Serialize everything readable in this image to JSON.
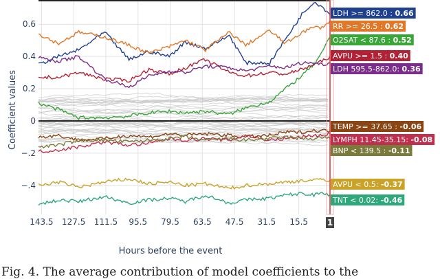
{
  "chart_data": {
    "type": "line",
    "xlabel": "Hours before the event",
    "ylabel": "Coefficient values",
    "x_ticks": [
      "143.5",
      "127.5",
      "111.5",
      "95.5",
      "79.5",
      "63.5",
      "47.5",
      "31.5",
      "15.5"
    ],
    "x_range": [
      145,
      0
    ],
    "y_ticks": [
      -0.4,
      -0.2,
      0,
      0.2,
      0.4,
      0.6
    ],
    "ylim": [
      -0.58,
      0.75
    ],
    "grid": true,
    "current_marker": "1",
    "series": [
      {
        "name": "LDH >= 862.0",
        "label": "LDH >= 862.0 : ",
        "final": "0.66",
        "color": "#1f3f8f",
        "x": [
          145,
          135,
          125,
          112,
          100,
          90,
          80,
          72,
          62,
          50,
          42,
          30,
          22,
          14,
          8,
          4,
          0
        ],
        "y": [
          0.35,
          0.4,
          0.44,
          0.55,
          0.38,
          0.43,
          0.4,
          0.49,
          0.45,
          0.53,
          0.36,
          0.36,
          0.51,
          0.66,
          0.74,
          0.71,
          0.66
        ]
      },
      {
        "name": "RR >= 26.5",
        "label": "RR >= 26.5 : ",
        "final": "0.62",
        "color": "#e0782a",
        "x": [
          145,
          135,
          125,
          112,
          100,
          90,
          80,
          72,
          62,
          50,
          42,
          30,
          22,
          14,
          8,
          4,
          0
        ],
        "y": [
          0.54,
          0.48,
          0.55,
          0.52,
          0.47,
          0.42,
          0.46,
          0.5,
          0.44,
          0.55,
          0.47,
          0.56,
          0.48,
          0.55,
          0.58,
          0.58,
          0.62
        ]
      },
      {
        "name": "O2SAT < 87.6",
        "label": "O2SAT < 87.6 : ",
        "final": "0.52",
        "color": "#3aa63a",
        "x": [
          145,
          135,
          125,
          112,
          100,
          90,
          80,
          72,
          62,
          50,
          42,
          30,
          22,
          14,
          8,
          4,
          0
        ],
        "y": [
          0.11,
          0.07,
          0.02,
          0.02,
          0.03,
          0.05,
          0.06,
          0.05,
          0.06,
          0.04,
          0.08,
          0.12,
          0.2,
          0.28,
          0.35,
          0.42,
          0.52
        ]
      },
      {
        "name": "AVPU >= 1.5",
        "label": "AVPU >= 1.5 : ",
        "final": "0.40",
        "color": "#b22234",
        "x": [
          145,
          135,
          125,
          112,
          100,
          90,
          80,
          72,
          62,
          50,
          42,
          30,
          22,
          14,
          8,
          4,
          0
        ],
        "y": [
          0.27,
          0.27,
          0.3,
          0.26,
          0.25,
          0.32,
          0.29,
          0.33,
          0.38,
          0.3,
          0.28,
          0.3,
          0.29,
          0.32,
          0.35,
          0.37,
          0.4
        ]
      },
      {
        "name": "LDH 595.5-862.0",
        "label": "LDH 595.5-862.0: ",
        "final": "0.36",
        "color": "#7b2d8b",
        "x": [
          145,
          135,
          125,
          112,
          100,
          90,
          80,
          72,
          62,
          50,
          42,
          30,
          22,
          14,
          8,
          4,
          0
        ],
        "y": [
          0.39,
          0.37,
          0.4,
          0.26,
          0.21,
          0.28,
          0.31,
          0.3,
          0.34,
          0.33,
          0.31,
          0.34,
          0.33,
          0.36,
          0.36,
          0.35,
          0.36
        ]
      },
      {
        "name": "TEMP >= 37.65",
        "label": "TEMP >= 37.65 : ",
        "final": "-0.06",
        "color": "#8b4513",
        "x": [
          145,
          135,
          125,
          112,
          100,
          90,
          80,
          72,
          62,
          50,
          42,
          30,
          22,
          14,
          8,
          4,
          0
        ],
        "y": [
          -0.1,
          -0.09,
          -0.12,
          -0.11,
          -0.09,
          -0.1,
          -0.08,
          -0.09,
          -0.08,
          -0.09,
          -0.1,
          -0.09,
          -0.07,
          -0.07,
          -0.06,
          -0.06,
          -0.06
        ]
      },
      {
        "name": "LYMPH 11.45-35.15",
        "label": "LYMPH 11.45-35.15: ",
        "final": "-0.08",
        "color": "#c0304e",
        "x": [
          145,
          135,
          125,
          112,
          100,
          90,
          80,
          72,
          62,
          50,
          42,
          30,
          22,
          14,
          8,
          4,
          0
        ],
        "y": [
          -0.19,
          -0.18,
          -0.16,
          -0.13,
          -0.15,
          -0.14,
          -0.11,
          -0.12,
          -0.11,
          -0.12,
          -0.09,
          -0.12,
          -0.11,
          -0.1,
          -0.09,
          -0.09,
          -0.08
        ]
      },
      {
        "name": "BNP < 139.5",
        "label": "BNP < 139.5 : ",
        "final": "-0.11",
        "color": "#7a7a3a",
        "x": [
          145,
          135,
          125,
          112,
          100,
          90,
          80,
          72,
          62,
          50,
          42,
          30,
          22,
          14,
          8,
          4,
          0
        ],
        "y": [
          -0.16,
          -0.15,
          -0.12,
          -0.12,
          -0.13,
          -0.12,
          -0.11,
          -0.1,
          -0.12,
          -0.11,
          -0.12,
          -0.11,
          -0.1,
          -0.11,
          -0.11,
          -0.1,
          -0.11
        ]
      },
      {
        "name": "AVPU < 0.5",
        "label": "AVPU < 0.5: ",
        "final": "-0.37",
        "color": "#c9a227",
        "x": [
          145,
          135,
          125,
          112,
          100,
          90,
          80,
          72,
          62,
          50,
          42,
          30,
          22,
          14,
          8,
          4,
          0
        ],
        "y": [
          -0.4,
          -0.38,
          -0.41,
          -0.38,
          -0.36,
          -0.39,
          -0.38,
          -0.4,
          -0.39,
          -0.42,
          -0.4,
          -0.39,
          -0.38,
          -0.37,
          -0.37,
          -0.36,
          -0.37
        ]
      },
      {
        "name": "TNT < 0.02",
        "label": "TNT < 0.02: ",
        "final": "-0.46",
        "color": "#2ea87a",
        "x": [
          145,
          135,
          125,
          112,
          100,
          90,
          80,
          72,
          62,
          50,
          42,
          30,
          22,
          14,
          8,
          4,
          0
        ],
        "y": [
          -0.52,
          -0.49,
          -0.5,
          -0.47,
          -0.51,
          -0.49,
          -0.48,
          -0.5,
          -0.46,
          -0.51,
          -0.49,
          -0.48,
          -0.46,
          -0.45,
          -0.46,
          -0.44,
          -0.46
        ]
      }
    ],
    "background_series_count": 40
  },
  "caption": "Fig. 4.  The average contribution of model coefficients to the"
}
